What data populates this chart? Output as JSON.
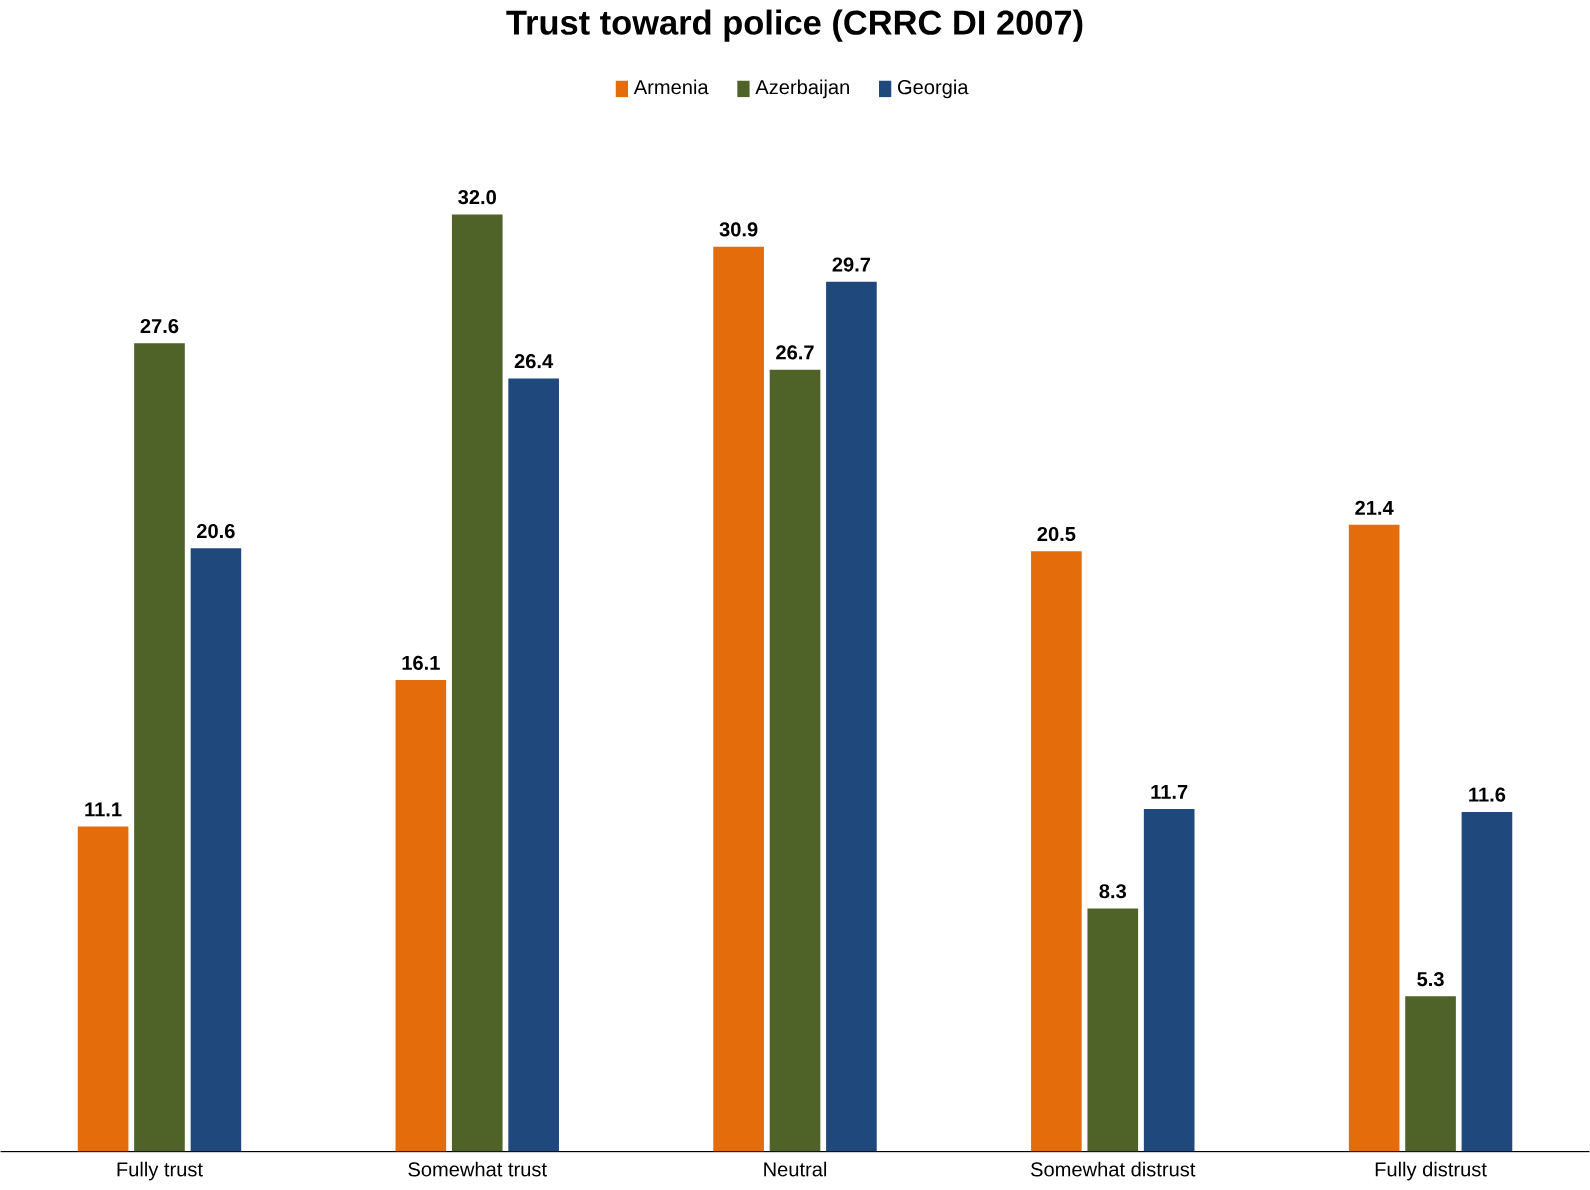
{
  "chart_data": {
    "type": "bar",
    "title": "Trust toward police (CRRC DI 2007)",
    "categories": [
      "Fully trust",
      "Somewhat trust",
      "Neutral",
      "Somewhat distrust",
      "Fully distrust"
    ],
    "series": [
      {
        "name": "Armenia",
        "color": "#e46c0a",
        "values": [
          11.1,
          16.1,
          30.9,
          20.5,
          21.4
        ],
        "value_labels": [
          "11.1",
          "16.1",
          "30.9",
          "20.5",
          "21.4"
        ]
      },
      {
        "name": "Azerbaijan",
        "color": "#4f6228",
        "values": [
          27.6,
          32.0,
          26.7,
          8.3,
          5.3
        ],
        "value_labels": [
          "27.6",
          "32.0",
          "26.7",
          "8.3",
          "5.3"
        ]
      },
      {
        "name": "Georgia",
        "color": "#1f497d",
        "values": [
          20.6,
          26.4,
          29.7,
          11.7,
          11.6
        ],
        "value_labels": [
          "20.6",
          "26.4",
          "29.7",
          "11.7",
          "11.6"
        ]
      }
    ],
    "legend": "top",
    "grid": false
  }
}
